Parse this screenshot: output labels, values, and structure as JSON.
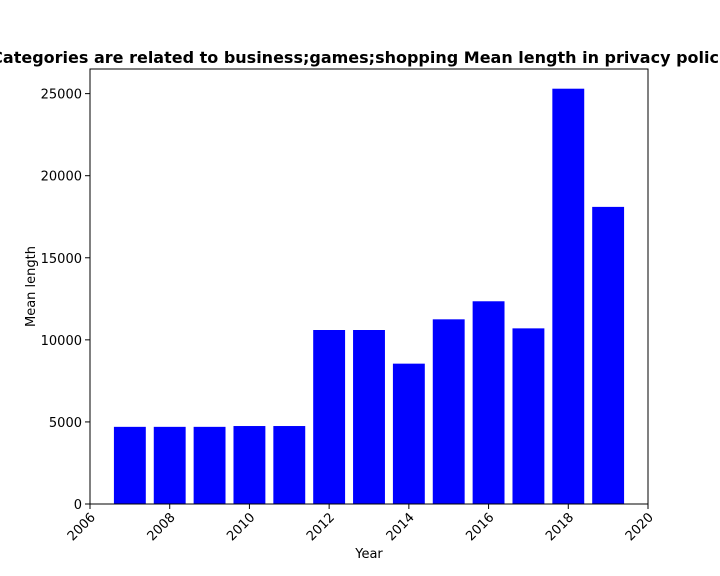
{
  "chart_data": {
    "type": "bar",
    "title": "Categories are related to business;games;shopping Mean length in privacy policies",
    "xlabel": "Year",
    "ylabel": "Mean length",
    "categories": [
      2007,
      2008,
      2009,
      2010,
      2011,
      2012,
      2013,
      2014,
      2015,
      2016,
      2017,
      2018,
      2019
    ],
    "values": [
      4700,
      4700,
      4700,
      4750,
      4750,
      10600,
      10600,
      8550,
      11250,
      12350,
      10700,
      25300,
      18100
    ],
    "xlim": [
      2006,
      2020
    ],
    "ylim": [
      0,
      26500
    ],
    "xticks": [
      2006,
      2008,
      2010,
      2012,
      2014,
      2016,
      2018,
      2020
    ],
    "yticks": [
      0,
      5000,
      10000,
      15000,
      20000,
      25000
    ],
    "bar_color": "#0000ff",
    "grid": false,
    "legend": "none"
  }
}
